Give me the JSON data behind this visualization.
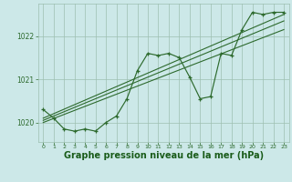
{
  "bg_color": "#cce8e8",
  "line_color": "#2d6a2d",
  "grid_color": "#9dbfb0",
  "xlabel": "Graphe pression niveau de la mer (hPa)",
  "xlabel_fontsize": 7.0,
  "xlabel_color": "#1a5c1a",
  "ylabel_ticks": [
    1020,
    1021,
    1022
  ],
  "xlim": [
    -0.5,
    23.5
  ],
  "ylim": [
    1019.55,
    1022.75
  ],
  "series1_x": [
    0,
    1,
    2,
    3,
    4,
    5,
    6,
    7,
    8,
    9,
    10,
    11,
    12,
    13,
    14,
    15,
    16,
    17,
    18,
    19,
    20,
    21,
    22,
    23
  ],
  "series1_y": [
    1020.3,
    1020.1,
    1019.85,
    1019.8,
    1019.85,
    1019.8,
    1020.0,
    1020.15,
    1020.55,
    1021.2,
    1021.6,
    1021.55,
    1021.6,
    1021.5,
    1021.05,
    1020.55,
    1020.6,
    1021.6,
    1021.55,
    1022.15,
    1022.55,
    1022.5,
    1022.55,
    1022.55
  ],
  "line1_x": [
    0,
    23
  ],
  "line1_y": [
    1020.0,
    1022.15
  ],
  "line2_x": [
    0,
    23
  ],
  "line2_y": [
    1020.05,
    1022.35
  ],
  "line3_x": [
    0,
    23
  ],
  "line3_y": [
    1020.1,
    1022.5
  ]
}
